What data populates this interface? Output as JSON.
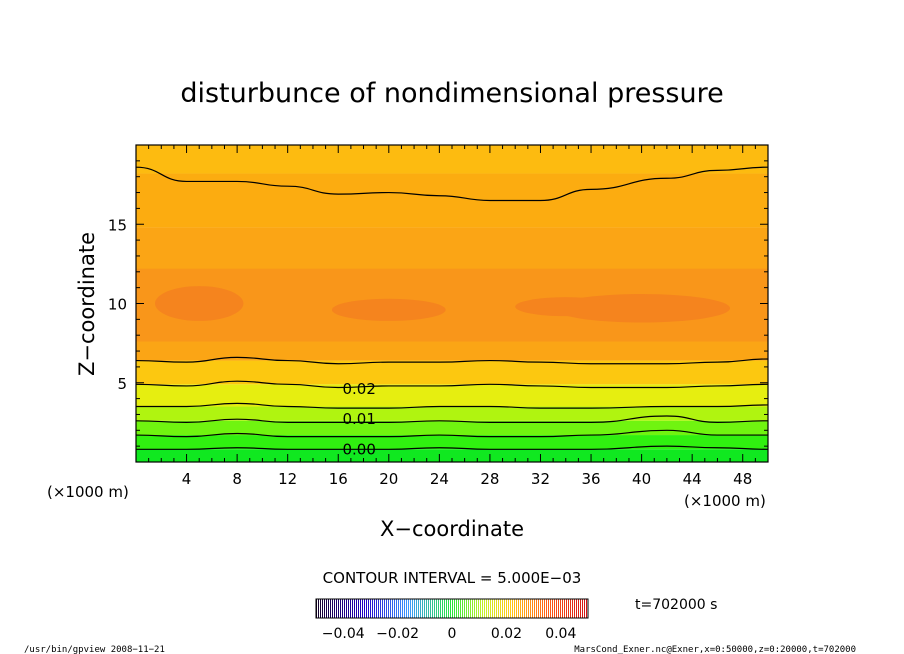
{
  "chart_data": {
    "type": "contour",
    "title": "disturbunce of nondimensional pressure",
    "xlabel": "X−coordinate",
    "ylabel": "Z−coordinate",
    "x_unit": "(×1000 m)",
    "x_unit_right": "(×1000 m)",
    "xlim": [
      0,
      50
    ],
    "ylim": [
      0,
      20
    ],
    "x_ticks": [
      4,
      8,
      12,
      16,
      20,
      24,
      28,
      32,
      36,
      40,
      44,
      48
    ],
    "y_ticks": [
      5,
      10,
      15
    ],
    "contour_interval": "CONTOUR INTERVAL = 5.000E−03",
    "time_label": "t=702000 s",
    "colorbar": {
      "range": [
        -0.05,
        0.05
      ],
      "tick_labels": [
        "−0.04",
        "−0.02",
        "0",
        "0.02",
        "0.04"
      ],
      "tick_values": [
        -0.04,
        -0.02,
        0,
        0.02,
        0.04
      ]
    },
    "contour_labels": [
      {
        "text": "0.02",
        "x": 17.5,
        "z": 4.6
      },
      {
        "text": "0.01",
        "x": 17.5,
        "z": 2.7
      },
      {
        "text": "0.00",
        "x": 17.5,
        "z": 0.8
      }
    ],
    "contour_lines": [
      {
        "z": [
          18.6,
          17.7,
          17.7,
          17.4,
          16.9,
          17.0,
          16.8,
          16.5,
          16.5,
          17.2,
          17.9,
          18.4,
          18.6
        ]
      },
      {
        "z": [
          6.4,
          6.3,
          6.6,
          6.4,
          6.2,
          6.3,
          6.3,
          6.4,
          6.3,
          6.2,
          6.2,
          6.3,
          6.5
        ]
      },
      {
        "z": [
          4.9,
          4.8,
          5.1,
          4.9,
          4.7,
          4.8,
          4.8,
          4.9,
          4.8,
          4.7,
          4.7,
          4.8,
          4.9
        ]
      },
      {
        "z": [
          3.5,
          3.5,
          3.7,
          3.5,
          3.4,
          3.4,
          3.5,
          3.5,
          3.4,
          3.4,
          3.5,
          3.5,
          3.6
        ]
      },
      {
        "z": [
          2.6,
          2.5,
          2.7,
          2.5,
          2.5,
          2.5,
          2.6,
          2.5,
          2.5,
          2.5,
          2.9,
          2.5,
          2.6
        ]
      },
      {
        "z": [
          1.7,
          1.6,
          1.8,
          1.6,
          1.6,
          1.6,
          1.7,
          1.6,
          1.6,
          1.7,
          2.0,
          1.7,
          1.7
        ]
      },
      {
        "z": [
          0.8,
          0.8,
          0.9,
          0.8,
          0.8,
          0.8,
          0.9,
          0.8,
          0.8,
          0.8,
          1.0,
          0.9,
          0.8
        ]
      }
    ],
    "contour_x": [
      0,
      4,
      8,
      12,
      16,
      20,
      24,
      28,
      32,
      36,
      42,
      46,
      50
    ],
    "fill_bands": [
      {
        "z": [
          0,
          0.8
        ],
        "color": "#10e820"
      },
      {
        "z": [
          0.8,
          1.7
        ],
        "color": "#30f010"
      },
      {
        "z": [
          1.7,
          2.6
        ],
        "color": "#70f410"
      },
      {
        "z": [
          2.6,
          3.5
        ],
        "color": "#b0f410"
      },
      {
        "z": [
          3.5,
          4.9
        ],
        "color": "#e6ee10"
      },
      {
        "z": [
          4.9,
          6.4
        ],
        "color": "#fcc810"
      },
      {
        "z": [
          6.4,
          14.8
        ],
        "color": "#fba515"
      },
      {
        "z": [
          14.8,
          18.2
        ],
        "color": "#fcac10"
      },
      {
        "z": [
          18.2,
          20
        ],
        "color": "#fdbb10"
      }
    ],
    "center_band_color": "#f9961a",
    "blob_color": "#f5841e",
    "footer_left": "/usr/bin/gpview   2008−11−21",
    "footer_right": "MarsCond_Exner.nc@Exner,x=0:50000,z=0:20000,t=702000"
  }
}
